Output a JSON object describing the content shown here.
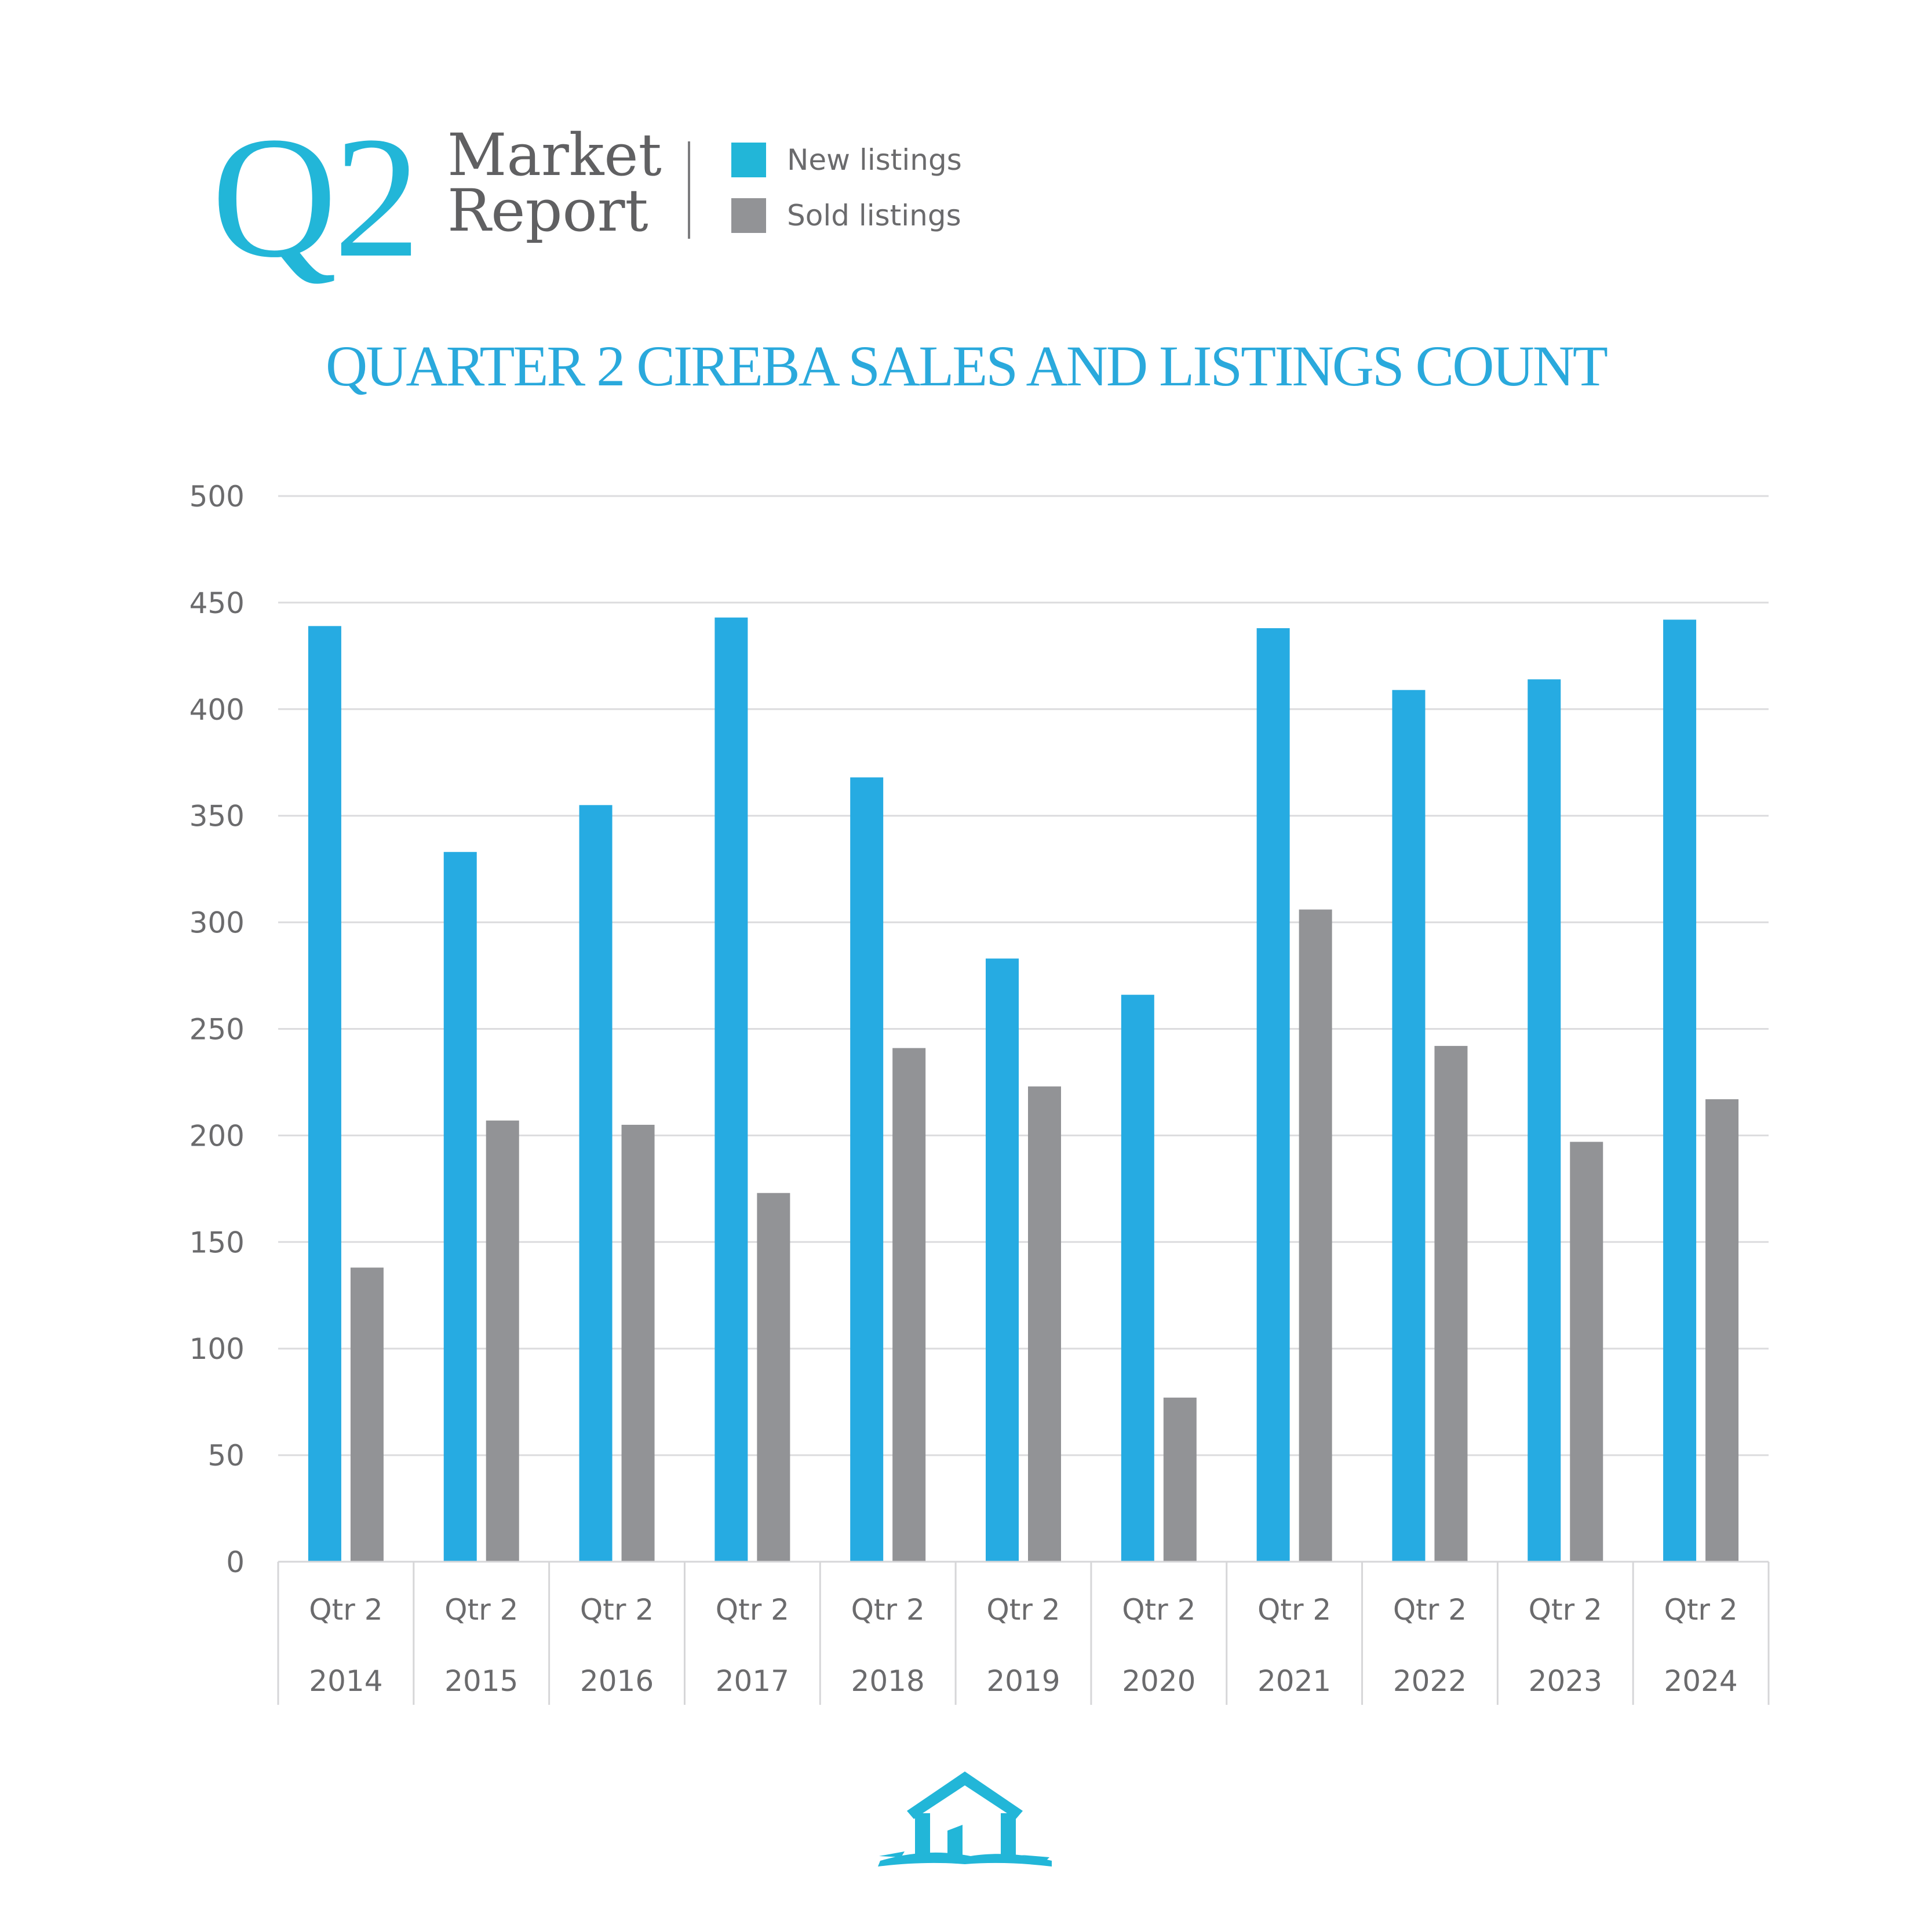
{
  "header": {
    "badge": "Q2",
    "report_line1": "Market",
    "report_line2": "Report"
  },
  "legend": {
    "items": [
      {
        "label": "New listings",
        "color": "#22b6d8"
      },
      {
        "label": "Sold listings",
        "color": "#929396"
      }
    ]
  },
  "chart_data": {
    "type": "bar",
    "title": "QUARTER 2 CIREBA SALES AND LISTINGS COUNT",
    "xlabel": "",
    "ylabel": "",
    "ylim": [
      0,
      500
    ],
    "yticks": [
      0,
      50,
      100,
      150,
      200,
      250,
      300,
      350,
      400,
      450,
      500
    ],
    "grid": true,
    "legend_position": "top-right",
    "categories": [
      [
        "Qtr 2",
        "2014"
      ],
      [
        "Qtr 2",
        "2015"
      ],
      [
        "Qtr 2",
        "2016"
      ],
      [
        "Qtr 2",
        "2017"
      ],
      [
        "Qtr 2",
        "2018"
      ],
      [
        "Qtr 2",
        "2019"
      ],
      [
        "Qtr 2",
        "2020"
      ],
      [
        "Qtr 2",
        "2021"
      ],
      [
        "Qtr 2",
        "2022"
      ],
      [
        "Qtr 2",
        "2023"
      ],
      [
        "Qtr 2",
        "2024"
      ]
    ],
    "series": [
      {
        "name": "New listings",
        "color": "#26abe2",
        "values": [
          439,
          333,
          355,
          443,
          368,
          283,
          266,
          438,
          409,
          414,
          442
        ]
      },
      {
        "name": "Sold listings",
        "color": "#929396",
        "values": [
          138,
          207,
          205,
          173,
          241,
          223,
          77,
          306,
          242,
          197,
          217
        ]
      }
    ]
  },
  "logo": {
    "icon": "house-brushstroke-logo",
    "color": "#22b6d8"
  }
}
